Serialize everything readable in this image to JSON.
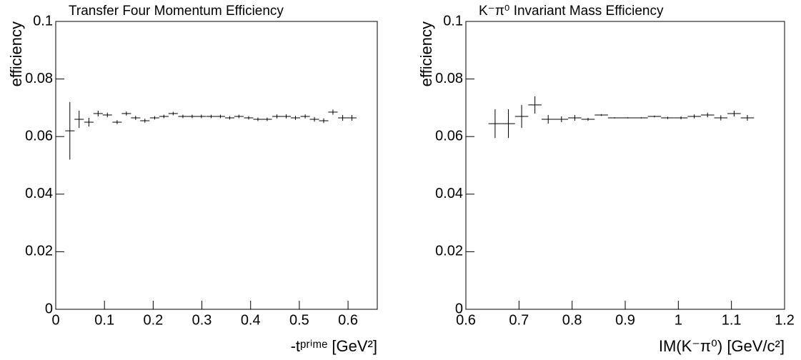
{
  "chart_data": [
    {
      "type": "errorbar",
      "title": "Transfer Four Momentum Efficiency",
      "xlabel": "-tᵖʳⁱᵐᵉ [GeV²]",
      "ylabel": "efficiency",
      "xlim": [
        0,
        0.66
      ],
      "ylim": [
        0,
        0.1
      ],
      "xticks": [
        0,
        0.1,
        0.2,
        0.3,
        0.4,
        0.5,
        0.6
      ],
      "yticks": [
        0,
        0.02,
        0.04,
        0.06,
        0.08,
        0.1
      ],
      "color": "#000000",
      "xerr": 0.0096,
      "x": [
        0.029,
        0.048,
        0.068,
        0.087,
        0.106,
        0.126,
        0.145,
        0.164,
        0.183,
        0.203,
        0.222,
        0.241,
        0.261,
        0.28,
        0.299,
        0.319,
        0.338,
        0.357,
        0.376,
        0.396,
        0.415,
        0.434,
        0.454,
        0.473,
        0.492,
        0.512,
        0.531,
        0.55,
        0.569,
        0.589,
        0.608
      ],
      "values": [
        0.062,
        0.066,
        0.065,
        0.068,
        0.0675,
        0.065,
        0.068,
        0.0665,
        0.0655,
        0.0665,
        0.067,
        0.068,
        0.067,
        0.067,
        0.067,
        0.067,
        0.067,
        0.0665,
        0.067,
        0.0665,
        0.066,
        0.066,
        0.067,
        0.067,
        0.0665,
        0.067,
        0.066,
        0.0655,
        0.0685,
        0.0665,
        0.0665
      ],
      "errors": [
        0.01,
        0.003,
        0.0015,
        0.001,
        0.0008,
        0.0007,
        0.0007,
        0.0007,
        0.0007,
        0.0006,
        0.0006,
        0.0006,
        0.0006,
        0.0006,
        0.0006,
        0.0006,
        0.0006,
        0.0006,
        0.0006,
        0.0006,
        0.0006,
        0.0006,
        0.0007,
        0.0007,
        0.0007,
        0.0007,
        0.0008,
        0.0008,
        0.0009,
        0.001,
        0.001
      ]
    },
    {
      "type": "errorbar",
      "title": "K⁻π⁰ Invariant Mass Efficiency",
      "xlabel": "IM(K⁻π⁰) [GeV/c²]",
      "ylabel": "efficiency",
      "xlim": [
        0.6,
        1.2
      ],
      "ylim": [
        0,
        0.1
      ],
      "xticks": [
        0.6,
        0.7,
        0.8,
        0.9,
        1,
        1.1,
        1.2
      ],
      "yticks": [
        0,
        0.02,
        0.04,
        0.06,
        0.08,
        0.1
      ],
      "color": "#000000",
      "xerr": 0.0125,
      "x": [
        0.655,
        0.68,
        0.705,
        0.73,
        0.755,
        0.78,
        0.805,
        0.83,
        0.855,
        0.88,
        0.905,
        0.93,
        0.955,
        0.98,
        1.005,
        1.03,
        1.055,
        1.08,
        1.105,
        1.13
      ],
      "values": [
        0.0645,
        0.0645,
        0.067,
        0.071,
        0.066,
        0.066,
        0.0665,
        0.066,
        0.0675,
        0.0665,
        0.0665,
        0.0665,
        0.067,
        0.0665,
        0.0665,
        0.067,
        0.0675,
        0.0665,
        0.068,
        0.0665
      ],
      "errors": [
        0.005,
        0.005,
        0.004,
        0.003,
        0.0015,
        0.001,
        0.001,
        0.0005,
        0.0003,
        0.0002,
        0.0002,
        0.0002,
        0.0003,
        0.0004,
        0.0005,
        0.0007,
        0.0008,
        0.0009,
        0.001,
        0.001
      ]
    }
  ]
}
